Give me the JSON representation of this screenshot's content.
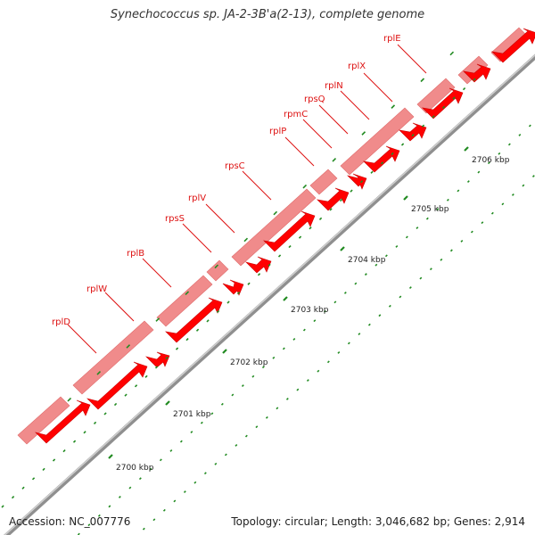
{
  "title": "Synechococcus sp. JA-2-3B'a(2-13), complete genome",
  "accession": "Accession: NC_007776",
  "summary": "Topology: circular; Length: 3,046,682 bp; Genes: 2,914",
  "colors": {
    "backbone": "#999999",
    "forward_track": "#f08b8b",
    "reverse_track": "#ff0000",
    "tick": "#228b22",
    "label": "#dd1111"
  },
  "genes": [
    {
      "name": "rplD",
      "strand": "+"
    },
    {
      "name": "rplW",
      "strand": "+"
    },
    {
      "name": "rplB",
      "strand": "+"
    },
    {
      "name": "rpsS",
      "strand": "+"
    },
    {
      "name": "rplV",
      "strand": "+"
    },
    {
      "name": "rpsC",
      "strand": "+"
    },
    {
      "name": "rplP",
      "strand": "+"
    },
    {
      "name": "rpmC",
      "strand": "+"
    },
    {
      "name": "rpsQ",
      "strand": "+"
    },
    {
      "name": "rplN",
      "strand": "+"
    },
    {
      "name": "rplX",
      "strand": "+"
    },
    {
      "name": "rplE",
      "strand": "+"
    }
  ],
  "scale": [
    "2700 kbp",
    "2701 kbp",
    "2702 kbp",
    "2703 kbp",
    "2704 kbp",
    "2705 kbp",
    "2706 kbp"
  ]
}
